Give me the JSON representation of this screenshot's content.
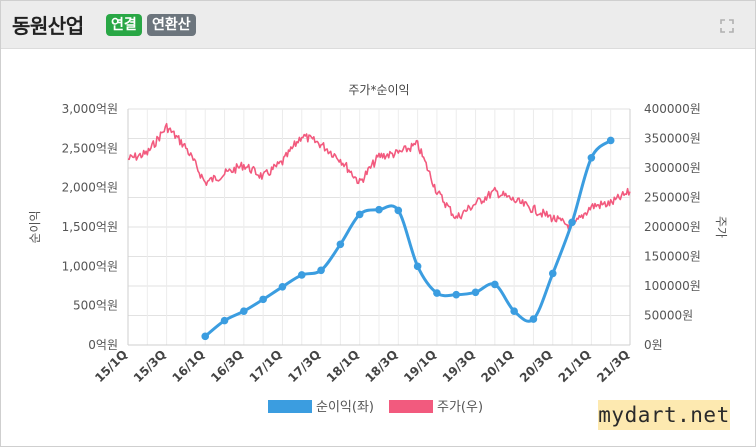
{
  "header": {
    "company": "동원산업",
    "badge_consolidated": "연결",
    "badge_annualized": "연환산"
  },
  "watermark": "mydart.net",
  "chart_data": {
    "type": "line",
    "title": "주가*순이익",
    "ylabel_left": "순이익",
    "ylabel_right": "주가",
    "y_left": {
      "range": [
        0,
        3000
      ],
      "ticks": [
        "0억원",
        "500억원",
        "1,000억원",
        "1,500억원",
        "2,000억원",
        "2,500억원",
        "3,000억원"
      ]
    },
    "y_right": {
      "range": [
        0,
        400000
      ],
      "ticks": [
        "0원",
        "50000원",
        "100000원",
        "150000원",
        "200000원",
        "250000원",
        "300000원",
        "350000원",
        "400000원"
      ]
    },
    "x_ticks": [
      "15/1Q",
      "15/3Q",
      "16/1Q",
      "16/3Q",
      "17/1Q",
      "17/3Q",
      "18/1Q",
      "18/3Q",
      "19/1Q",
      "19/3Q",
      "20/1Q",
      "20/3Q",
      "21/1Q",
      "21/3Q"
    ],
    "legend_position": "bottom",
    "series": [
      {
        "name": "순이익(좌)",
        "axis": "left",
        "color": "#3b9de0",
        "x": [
          "16/1Q",
          "16/2Q",
          "16/3Q",
          "16/4Q",
          "17/1Q",
          "17/2Q",
          "17/3Q",
          "17/4Q",
          "18/1Q",
          "18/2Q",
          "18/3Q",
          "18/4Q",
          "19/1Q",
          "19/2Q",
          "19/3Q",
          "19/4Q",
          "20/1Q",
          "20/2Q",
          "20/3Q",
          "20/4Q",
          "21/1Q",
          "21/2Q"
        ],
        "values": [
          110,
          310,
          430,
          580,
          740,
          890,
          950,
          1280,
          1660,
          1720,
          1710,
          1000,
          660,
          640,
          670,
          770,
          430,
          330,
          910,
          1560,
          2380,
          2600
        ]
      },
      {
        "name": "주가(우)",
        "axis": "right",
        "color": "#f25a7e",
        "x": [
          "15/1Q",
          "15/2Q",
          "15/3Q",
          "15/4Q",
          "16/1Q",
          "16/2Q",
          "16/3Q",
          "16/4Q",
          "17/1Q",
          "17/2Q",
          "17/3Q",
          "17/4Q",
          "18/1Q",
          "18/2Q",
          "18/3Q",
          "18/4Q",
          "19/1Q",
          "19/2Q",
          "19/3Q",
          "19/4Q",
          "20/1Q",
          "20/2Q",
          "20/3Q",
          "20/4Q",
          "21/1Q",
          "21/2Q",
          "21/3Q"
        ],
        "values": [
          315000,
          325000,
          370000,
          335000,
          275000,
          290000,
          305000,
          285000,
          310000,
          355000,
          340000,
          315000,
          275000,
          320000,
          325000,
          340000,
          260000,
          215000,
          240000,
          260000,
          245000,
          230000,
          215000,
          200000,
          235000,
          240000,
          260000
        ]
      }
    ]
  }
}
